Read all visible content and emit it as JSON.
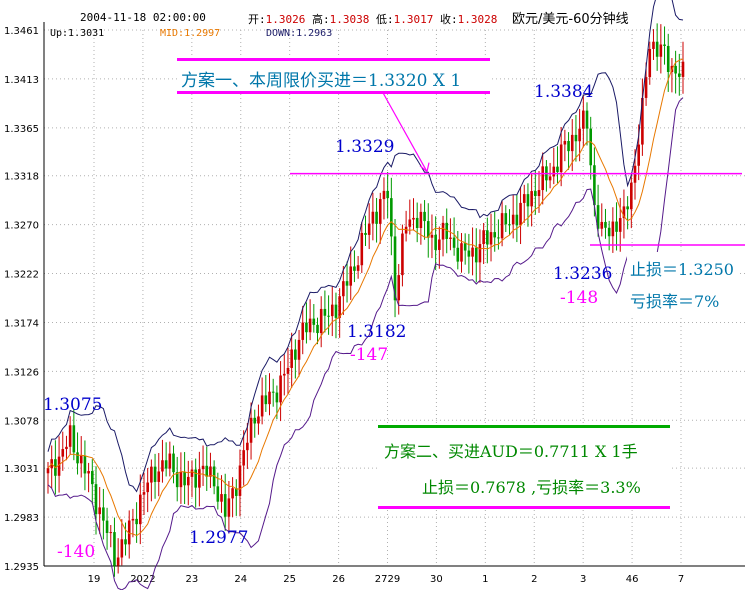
{
  "header": {
    "datetime": "2004-11-18 02:00:00",
    "open_label": "开:",
    "open_value": "1.3026",
    "high_label": "高:",
    "high_value": "1.3038",
    "low_label": "低:",
    "low_value": "1.3017",
    "close_label": "收:",
    "close_value": "1.3028",
    "chart_title": "欧元/美元-60分钟线",
    "up_label": "Up:1.3031",
    "mid_label": "MID:1.2997",
    "down_label": "DOWN:1.2963"
  },
  "colors": {
    "background": "#ffffff",
    "axis": "#000000",
    "grid": "#b0b0b0",
    "bull_candle": "#cc0000",
    "bear_candle": "#009900",
    "mid_band": "#e87800",
    "upper_band": "#1a1a66",
    "lower_band": "#551a8b",
    "magenta": "#ff00ff",
    "red": "#ff0000",
    "blue_text": "#0000cc",
    "cyan_text": "#0077aa",
    "green_text": "#008800"
  },
  "annotations": {
    "plan1": "方案一、本周限价买进＝1.3320 X 1",
    "plan2_line1": "方案二、买进AUD＝0.7711 X 1手",
    "plan2_line2": "止损＝0.7678 ,亏损率＝3.3%",
    "stop1": "止损＝1.3250",
    "loss1": "亏损率＝7%",
    "p_13075": "1.3075",
    "p_m140": "-140",
    "p_12977": "1.2977",
    "p_13329": "1.3329",
    "p_13182": "1.3182",
    "p_m147": "-147",
    "p_13384": "1.3384",
    "p_13236": "1.3236",
    "p_m148": "-148"
  },
  "chart_data": {
    "type": "candlestick",
    "title": "欧元/美元-60分钟线",
    "ylim": [
      1.2935,
      1.3461
    ],
    "y_ticks": [
      "1.3461",
      "1.3413",
      "1.3365",
      "1.3318",
      "1.3270",
      "1.3222",
      "1.3174",
      "1.3126",
      "1.3078",
      "1.3031",
      "1.2983",
      "1.2935"
    ],
    "x_ticks": [
      "19",
      "2022",
      "23",
      "24",
      "25",
      "26",
      "2729",
      "30",
      "1",
      "2",
      "3",
      "46",
      "7"
    ],
    "reference_lines": [
      {
        "name": "limit_buy",
        "value": 1.332
      },
      {
        "name": "stop",
        "value": 1.325
      }
    ],
    "anchors": [
      [
        0,
        1.3025
      ],
      [
        6,
        1.306
      ],
      [
        10,
        1.303
      ],
      [
        14,
        1.299
      ],
      [
        18,
        1.2945
      ],
      [
        21,
        1.296
      ],
      [
        25,
        1.3
      ],
      [
        29,
        1.303
      ],
      [
        33,
        1.3035
      ],
      [
        37,
        1.3015
      ],
      [
        41,
        1.303
      ],
      [
        45,
        1.302
      ],
      [
        48,
        1.2985
      ],
      [
        52,
        1.303
      ],
      [
        56,
        1.3085
      ],
      [
        60,
        1.31
      ],
      [
        64,
        1.312
      ],
      [
        68,
        1.316
      ],
      [
        72,
        1.3175
      ],
      [
        76,
        1.318
      ],
      [
        80,
        1.3205
      ],
      [
        84,
        1.324
      ],
      [
        88,
        1.328
      ],
      [
        92,
        1.33
      ],
      [
        94,
        1.3205
      ],
      [
        97,
        1.327
      ],
      [
        100,
        1.328
      ],
      [
        104,
        1.3255
      ],
      [
        108,
        1.326
      ],
      [
        112,
        1.324
      ],
      [
        116,
        1.3245
      ],
      [
        120,
        1.326
      ],
      [
        124,
        1.327
      ],
      [
        128,
        1.3285
      ],
      [
        132,
        1.3305
      ],
      [
        136,
        1.332
      ],
      [
        140,
        1.3345
      ],
      [
        144,
        1.3365
      ],
      [
        146,
        1.337
      ],
      [
        148,
        1.329
      ],
      [
        150,
        1.326
      ],
      [
        153,
        1.327
      ],
      [
        156,
        1.3275
      ],
      [
        159,
        1.333
      ],
      [
        161,
        1.338
      ],
      [
        163,
        1.345
      ],
      [
        166,
        1.344
      ],
      [
        169,
        1.3425
      ],
      [
        172,
        1.3415
      ]
    ],
    "bands": {
      "window": 10,
      "k": 1.8
    }
  }
}
